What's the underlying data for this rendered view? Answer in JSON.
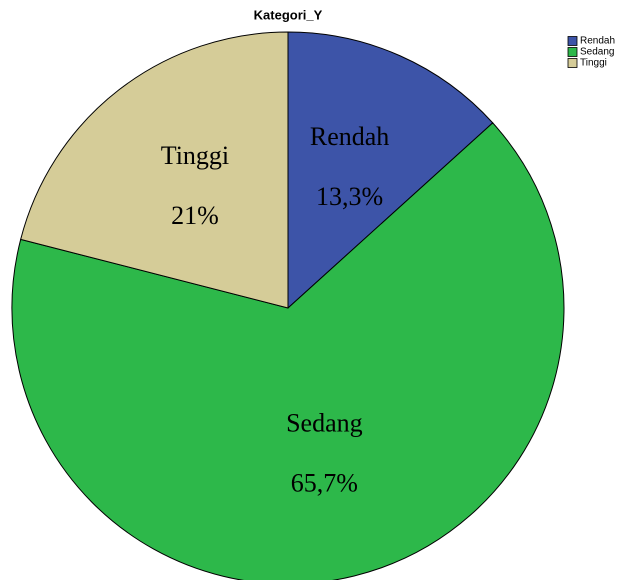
{
  "chart_data": {
    "type": "pie",
    "title": "Kategori_Y",
    "categories": [
      "Rendah",
      "Sedang",
      "Tinggi"
    ],
    "values": [
      13.3,
      65.7,
      21
    ],
    "value_labels": [
      "13,3%",
      "65,7%",
      "21%"
    ],
    "colors": [
      "#3d54a8",
      "#2db84a",
      "#d5cc98"
    ],
    "legend": "top-right"
  }
}
